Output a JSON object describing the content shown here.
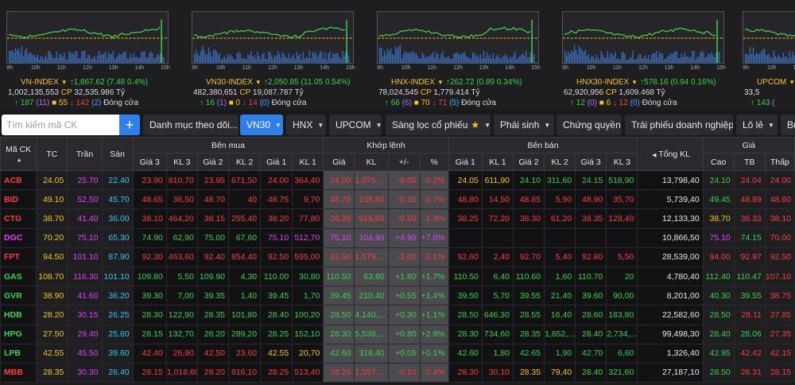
{
  "chart_times": [
    "9h",
    "10h",
    "11h",
    "12h",
    "13h",
    "14h",
    "15h"
  ],
  "indices": [
    {
      "name": "VN-INDEX",
      "value": "1,867.62",
      "change": "(7.48 0.4%)",
      "trend": "up",
      "volume": "1,002,135,553",
      "cp_value": "32,535.986",
      "unit": "Tỷ",
      "advances": "187",
      "adv_ceil": "(11)",
      "unchanged": "55",
      "declines": "142",
      "dec_floor": "(2)",
      "status": "Đóng cửa"
    },
    {
      "name": "VN30-INDEX",
      "value": "2,050.85",
      "change": "(11.05 0.54%)",
      "trend": "up",
      "volume": "482,380,651",
      "cp_value": "19,087.787",
      "unit": "Tỷ",
      "advances": "16",
      "adv_ceil": "(1)",
      "unchanged": "0",
      "declines": "14",
      "dec_floor": "(0)",
      "status": "Đóng cửa"
    },
    {
      "name": "HNX-INDEX",
      "value": "262.72",
      "change": "(0.89 0.34%)",
      "trend": "up",
      "volume": "78,024,545",
      "cp_value": "1,779.414",
      "unit": "Tỷ",
      "advances": "66",
      "adv_ceil": "(6)",
      "unchanged": "70",
      "declines": "71",
      "dec_floor": "(5)",
      "status": "Đóng cửa"
    },
    {
      "name": "HNX30-INDEX",
      "value": "578.16",
      "change": "(0.94 0.16%)",
      "trend": "up",
      "volume": "62,920,956",
      "cp_value": "1,609.468",
      "unit": "Tỷ",
      "advances": "12",
      "adv_ceil": "(0)",
      "unchanged": "6",
      "declines": "12",
      "dec_floor": "(0)",
      "status": "Đóng cửa"
    },
    {
      "name": "UPCOM",
      "value": "",
      "change": "",
      "trend": "up",
      "volume": "33,5",
      "cp_value": "",
      "unit": "",
      "advances": "143",
      "adv_ceil": "(",
      "unchanged": "",
      "declines": "",
      "dec_floor": "",
      "status": ""
    }
  ],
  "toolbar": {
    "search_placeholder": "Tìm kiếm mã CK",
    "add_label": "+",
    "watchlist": "Danh mục theo dõi...",
    "vn30": "VN30",
    "hnx": "HNX",
    "upcom": "UPCOM",
    "screener": "Sàng lọc cổ phiếu",
    "derivatives": "Phái sinh",
    "cw": "Chứng quyền",
    "bonds": "Trái phiếu doanh nghiệp",
    "odd_lot": "Lô lẻ",
    "more": "Bu"
  },
  "headers": {
    "symbol": "Mã CK",
    "ref": "TC",
    "ceil": "Trần",
    "floor": "Sàn",
    "bid_group": "Bên mua",
    "match_group": "Khớp lệnh",
    "ask_group": "Bên bán",
    "total_vol": "Tổng KL",
    "price_group": "Giá",
    "bid": [
      "Giá 3",
      "KL 3",
      "Giá 2",
      "KL 2",
      "Giá 1",
      "KL 1"
    ],
    "match": [
      "Giá",
      "KL",
      "+/-",
      "%"
    ],
    "ask": [
      "Giá 1",
      "KL 1",
      "Giá 2",
      "KL 2",
      "Giá 3",
      "KL 3"
    ],
    "hilo": [
      "Cao",
      "TB",
      "Thấp"
    ]
  },
  "rows": [
    {
      "sym": "ACB",
      "c": "d",
      "tc": "24.05",
      "tr": "25.70",
      "sa": "22.40",
      "bid": [
        [
          "23.90",
          "d"
        ],
        [
          "810,70",
          "d"
        ],
        [
          "23.95",
          "d"
        ],
        [
          "671,50",
          "d"
        ],
        [
          "24.00",
          "d"
        ],
        [
          "364,40",
          "d"
        ]
      ],
      "m": [
        [
          "24.00",
          "d"
        ],
        [
          "1,075,...",
          "d"
        ],
        [
          "-0.05",
          "d"
        ],
        [
          "-0.2%",
          "d"
        ]
      ],
      "ask": [
        [
          "24.05",
          "r"
        ],
        [
          "611,90",
          "r"
        ],
        [
          "24.10",
          "u"
        ],
        [
          "311,60",
          "u"
        ],
        [
          "24.15",
          "u"
        ],
        [
          "518,90",
          "u"
        ]
      ],
      "tot": "13,798,40",
      "hl": [
        [
          "24.10",
          "u"
        ],
        [
          "24.04",
          "d"
        ],
        [
          "24.00",
          "d"
        ]
      ]
    },
    {
      "sym": "BID",
      "c": "d",
      "tc": "49.10",
      "tr": "52.50",
      "sa": "45.70",
      "bid": [
        [
          "48.65",
          "d"
        ],
        [
          "36,50",
          "d"
        ],
        [
          "48.70",
          "d"
        ],
        [
          "40",
          "d"
        ],
        [
          "48.75",
          "d"
        ],
        [
          "9,70",
          "d"
        ]
      ],
      "m": [
        [
          "48.75",
          "d"
        ],
        [
          "235,80",
          "d"
        ],
        [
          "-0.35",
          "d"
        ],
        [
          "-0.7%",
          "d"
        ]
      ],
      "ask": [
        [
          "48.80",
          "d"
        ],
        [
          "14,50",
          "d"
        ],
        [
          "48.85",
          "d"
        ],
        [
          "5,90",
          "d"
        ],
        [
          "48.90",
          "d"
        ],
        [
          "35,70",
          "d"
        ]
      ],
      "tot": "5,739,40",
      "hl": [
        [
          "49.45",
          "u"
        ],
        [
          "48.89",
          "d"
        ],
        [
          "48.60",
          "d"
        ]
      ]
    },
    {
      "sym": "CTG",
      "c": "d",
      "tc": "38.70",
      "tr": "41.40",
      "sa": "36.00",
      "bid": [
        [
          "38.10",
          "d"
        ],
        [
          "464,20",
          "d"
        ],
        [
          "38.15",
          "d"
        ],
        [
          "255,40",
          "d"
        ],
        [
          "38.20",
          "d"
        ],
        [
          "77,80",
          "d"
        ]
      ],
      "m": [
        [
          "38.20",
          "d"
        ],
        [
          "616,80",
          "d"
        ],
        [
          "-0.50",
          "d"
        ],
        [
          "-1.3%",
          "d"
        ]
      ],
      "ask": [
        [
          "38.25",
          "d"
        ],
        [
          "72,20",
          "d"
        ],
        [
          "38.30",
          "d"
        ],
        [
          "61,20",
          "d"
        ],
        [
          "38.35",
          "d"
        ],
        [
          "128,40",
          "d"
        ]
      ],
      "tot": "12,133,30",
      "hl": [
        [
          "38.70",
          "r"
        ],
        [
          "38.33",
          "d"
        ],
        [
          "38.10",
          "d"
        ]
      ]
    },
    {
      "sym": "DGC",
      "c": "c",
      "tc": "70.20",
      "tr": "75.10",
      "sa": "65.30",
      "bid": [
        [
          "74.90",
          "u"
        ],
        [
          "62,90",
          "u"
        ],
        [
          "75.00",
          "u"
        ],
        [
          "67,60",
          "u"
        ],
        [
          "75.10",
          "c"
        ],
        [
          "512,70",
          "c"
        ]
      ],
      "m": [
        [
          "75.10",
          "c"
        ],
        [
          "104,90",
          "c"
        ],
        [
          "+4.90",
          "c"
        ],
        [
          "+7.0%",
          "c"
        ]
      ],
      "ask": [
        [
          "",
          "w"
        ],
        [
          "",
          "w"
        ],
        [
          "",
          "w"
        ],
        [
          "",
          "w"
        ],
        [
          "",
          "w"
        ],
        [
          "",
          "w"
        ]
      ],
      "tot": "10,866,50",
      "hl": [
        [
          "75.10",
          "c"
        ],
        [
          "74.15",
          "u"
        ],
        [
          "70.00",
          "d"
        ]
      ]
    },
    {
      "sym": "FPT",
      "c": "d",
      "tc": "94.50",
      "tr": "101.10",
      "sa": "87.90",
      "bid": [
        [
          "92.30",
          "d"
        ],
        [
          "463,60",
          "d"
        ],
        [
          "92.40",
          "d"
        ],
        [
          "854,40",
          "d"
        ],
        [
          "92.50",
          "d"
        ],
        [
          "595,00",
          "d"
        ]
      ],
      "m": [
        [
          "92.50",
          "d"
        ],
        [
          "1,579,...",
          "d"
        ],
        [
          "-2.00",
          "d"
        ],
        [
          "-2.1%",
          "d"
        ]
      ],
      "ask": [
        [
          "92.60",
          "d"
        ],
        [
          "2,40",
          "d"
        ],
        [
          "92.70",
          "d"
        ],
        [
          "5,40",
          "d"
        ],
        [
          "92.80",
          "d"
        ],
        [
          "5,50",
          "d"
        ]
      ],
      "tot": "28,539,00",
      "hl": [
        [
          "94.00",
          "d"
        ],
        [
          "92.97",
          "d"
        ],
        [
          "92.50",
          "d"
        ]
      ]
    },
    {
      "sym": "GAS",
      "c": "u",
      "tc": "108.70",
      "tr": "116.30",
      "sa": "101.10",
      "bid": [
        [
          "109.80",
          "u"
        ],
        [
          "5,50",
          "u"
        ],
        [
          "109.90",
          "u"
        ],
        [
          "4,30",
          "u"
        ],
        [
          "110.00",
          "u"
        ],
        [
          "30,80",
          "u"
        ]
      ],
      "m": [
        [
          "110.50",
          "u"
        ],
        [
          "63,80",
          "u"
        ],
        [
          "+1.80",
          "u"
        ],
        [
          "+1.7%",
          "u"
        ]
      ],
      "ask": [
        [
          "110.50",
          "u"
        ],
        [
          "6,40",
          "u"
        ],
        [
          "110.60",
          "u"
        ],
        [
          "1,60",
          "u"
        ],
        [
          "110.70",
          "u"
        ],
        [
          "20",
          "u"
        ]
      ],
      "tot": "4,780,40",
      "hl": [
        [
          "112.40",
          "u"
        ],
        [
          "110.47",
          "u"
        ],
        [
          "107.10",
          "d"
        ]
      ]
    },
    {
      "sym": "GVR",
      "c": "u",
      "tc": "38.90",
      "tr": "41.60",
      "sa": "36.20",
      "bid": [
        [
          "39.30",
          "u"
        ],
        [
          "7,00",
          "u"
        ],
        [
          "39.35",
          "u"
        ],
        [
          "1,40",
          "u"
        ],
        [
          "39.45",
          "u"
        ],
        [
          "1,70",
          "u"
        ]
      ],
      "m": [
        [
          "39.45",
          "u"
        ],
        [
          "210,40",
          "u"
        ],
        [
          "+0.55",
          "u"
        ],
        [
          "+1.4%",
          "u"
        ]
      ],
      "ask": [
        [
          "39.50",
          "u"
        ],
        [
          "5,70",
          "u"
        ],
        [
          "39.55",
          "u"
        ],
        [
          "21,40",
          "u"
        ],
        [
          "39.60",
          "u"
        ],
        [
          "90,00",
          "u"
        ]
      ],
      "tot": "8,201,00",
      "hl": [
        [
          "40.30",
          "u"
        ],
        [
          "39.55",
          "u"
        ],
        [
          "38.75",
          "d"
        ]
      ]
    },
    {
      "sym": "HDB",
      "c": "u",
      "tc": "28.20",
      "tr": "30.15",
      "sa": "26.25",
      "bid": [
        [
          "28.30",
          "u"
        ],
        [
          "122,90",
          "u"
        ],
        [
          "28.35",
          "u"
        ],
        [
          "101,80",
          "u"
        ],
        [
          "28.40",
          "u"
        ],
        [
          "100,20",
          "u"
        ]
      ],
      "m": [
        [
          "28.50",
          "u"
        ],
        [
          "4,140,...",
          "u"
        ],
        [
          "+0.30",
          "u"
        ],
        [
          "+1.1%",
          "u"
        ]
      ],
      "ask": [
        [
          "28.50",
          "u"
        ],
        [
          "646,30",
          "u"
        ],
        [
          "28.55",
          "u"
        ],
        [
          "16,40",
          "u"
        ],
        [
          "28.60",
          "u"
        ],
        [
          "183,80",
          "u"
        ]
      ],
      "tot": "22,582,60",
      "hl": [
        [
          "28.50",
          "u"
        ],
        [
          "28.11",
          "d"
        ],
        [
          "27.85",
          "d"
        ]
      ]
    },
    {
      "sym": "HPG",
      "c": "u",
      "tc": "27.50",
      "tr": "29.40",
      "sa": "25.60",
      "bid": [
        [
          "28.15",
          "u"
        ],
        [
          "132,70",
          "u"
        ],
        [
          "28.20",
          "u"
        ],
        [
          "289,20",
          "u"
        ],
        [
          "28.25",
          "u"
        ],
        [
          "152,10",
          "u"
        ]
      ],
      "m": [
        [
          "28.30",
          "u"
        ],
        [
          "5,538,...",
          "u"
        ],
        [
          "+0.80",
          "u"
        ],
        [
          "+2.9%",
          "u"
        ]
      ],
      "ask": [
        [
          "28.30",
          "u"
        ],
        [
          "734,60",
          "u"
        ],
        [
          "28.35",
          "u"
        ],
        [
          "1,652,...",
          "u"
        ],
        [
          "28.40",
          "u"
        ],
        [
          "2,734,...",
          "u"
        ]
      ],
      "tot": "99,498,30",
      "hl": [
        [
          "28.40",
          "u"
        ],
        [
          "28.06",
          "u"
        ],
        [
          "27.35",
          "d"
        ]
      ]
    },
    {
      "sym": "LPB",
      "c": "u",
      "tc": "42.55",
      "tr": "45.50",
      "sa": "39.60",
      "bid": [
        [
          "42.40",
          "d"
        ],
        [
          "26,90",
          "d"
        ],
        [
          "42.50",
          "d"
        ],
        [
          "23,60",
          "d"
        ],
        [
          "42.55",
          "r"
        ],
        [
          "20,70",
          "r"
        ]
      ],
      "m": [
        [
          "42.60",
          "u"
        ],
        [
          "318,40",
          "u"
        ],
        [
          "+0.05",
          "u"
        ],
        [
          "+0.1%",
          "u"
        ]
      ],
      "ask": [
        [
          "42.60",
          "u"
        ],
        [
          "1,80",
          "u"
        ],
        [
          "42.65",
          "u"
        ],
        [
          "1,90",
          "u"
        ],
        [
          "42.70",
          "u"
        ],
        [
          "6,60",
          "u"
        ]
      ],
      "tot": "1,326,40",
      "hl": [
        [
          "42.95",
          "u"
        ],
        [
          "42.42",
          "d"
        ],
        [
          "42.15",
          "d"
        ]
      ]
    },
    {
      "sym": "MBB",
      "c": "d",
      "tc": "28.35",
      "tr": "30.30",
      "sa": "26.40",
      "bid": [
        [
          "28.15",
          "d"
        ],
        [
          "1,018,60",
          "d"
        ],
        [
          "28.20",
          "d"
        ],
        [
          "916,10",
          "d"
        ],
        [
          "28.25",
          "d"
        ],
        [
          "513,40",
          "d"
        ]
      ],
      "m": [
        [
          "28.25",
          "d"
        ],
        [
          "1,557,...",
          "d"
        ],
        [
          "-0.10",
          "d"
        ],
        [
          "-0.4%",
          "d"
        ]
      ],
      "ask": [
        [
          "28.30",
          "d"
        ],
        [
          "30,10",
          "d"
        ],
        [
          "28.35",
          "r"
        ],
        [
          "79,40",
          "r"
        ],
        [
          "28.40",
          "u"
        ],
        [
          "321,60",
          "u"
        ]
      ],
      "tot": "27,187,10",
      "hl": [
        [
          "28.50",
          "u"
        ],
        [
          "28.31",
          "d"
        ],
        [
          "28.15",
          "d"
        ]
      ]
    }
  ],
  "colors": {
    "up": "#3cd24b",
    "down": "#ff3b3b",
    "ref": "#f5c518",
    "ceil": "#e040fb",
    "floor": "#33c6f2"
  }
}
